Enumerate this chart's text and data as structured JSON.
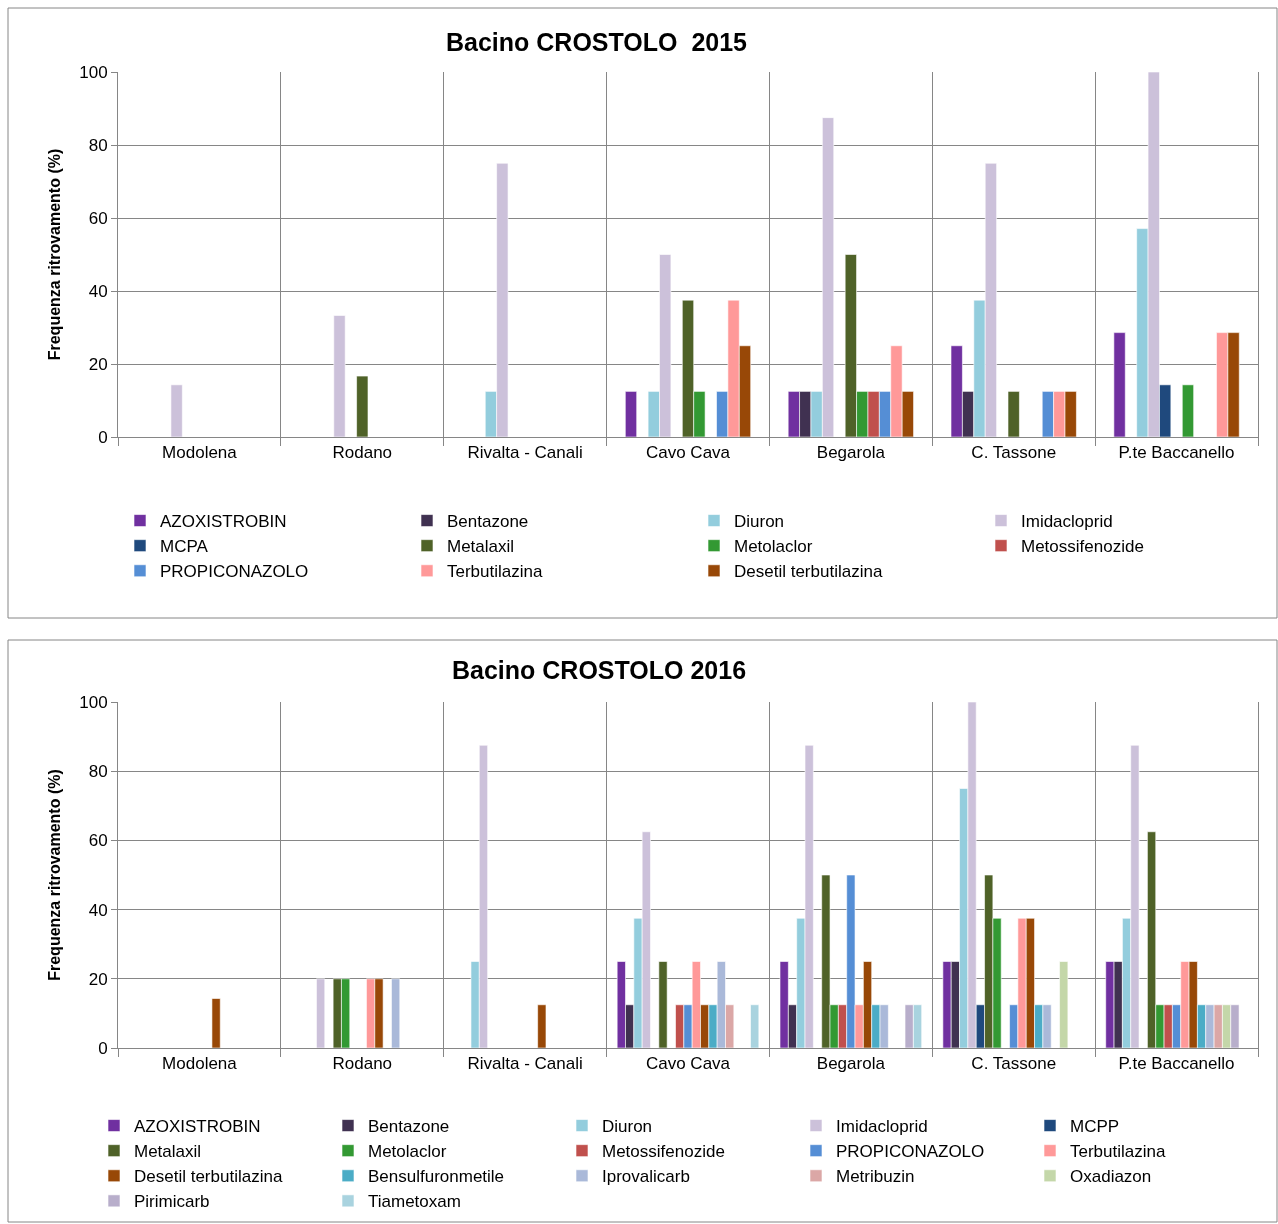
{
  "chart_data": [
    {
      "type": "bar",
      "title": "Bacino CROSTOLO  2015",
      "ylabel": "Frequenza ritrovamento (%)",
      "categories": [
        "Modolena",
        "Rodano",
        "Rivalta - Canali",
        "Cavo Cava",
        "Begarola",
        "C. Tassone",
        "P.te Baccanello"
      ],
      "series": [
        {
          "name": "AZOXISTROBIN",
          "color": "#7030a0",
          "values": [
            null,
            null,
            null,
            12.5,
            12.5,
            25,
            28.6
          ]
        },
        {
          "name": "Bentazone",
          "color": "#403151",
          "values": [
            null,
            null,
            null,
            null,
            12.5,
            12.5,
            null
          ]
        },
        {
          "name": "Diuron",
          "color": "#93cddd",
          "values": [
            null,
            null,
            12.5,
            12.5,
            12.5,
            37.5,
            57.1
          ]
        },
        {
          "name": "Imidacloprid",
          "color": "#ccc1da",
          "values": [
            14.3,
            33.3,
            75,
            50,
            87.5,
            75,
            100
          ]
        },
        {
          "name": "MCPA",
          "color": "#1f497d",
          "values": [
            null,
            null,
            null,
            null,
            null,
            null,
            14.3
          ]
        },
        {
          "name": "Metalaxil",
          "color": "#4f6228",
          "values": [
            null,
            16.7,
            null,
            37.5,
            50,
            12.5,
            null
          ]
        },
        {
          "name": "Metolaclor",
          "color": "#339933",
          "values": [
            null,
            null,
            null,
            12.5,
            12.5,
            null,
            14.3
          ]
        },
        {
          "name": "Metossifenozide",
          "color": "#c0504d",
          "values": [
            null,
            null,
            null,
            null,
            12.5,
            null,
            null
          ]
        },
        {
          "name": "PROPICONAZOLO",
          "color": "#558ed5",
          "values": [
            null,
            null,
            null,
            12.5,
            12.5,
            12.5,
            null
          ]
        },
        {
          "name": "Terbutilazina",
          "color": "#ff9999",
          "values": [
            null,
            null,
            null,
            37.5,
            25,
            12.5,
            28.6
          ]
        },
        {
          "name": "Desetil terbutilazina",
          "color": "#984807",
          "values": [
            null,
            null,
            null,
            25,
            12.5,
            12.5,
            28.6
          ]
        }
      ],
      "ylim": [
        0,
        100
      ],
      "yticks": [
        0,
        20,
        40,
        60,
        80,
        100
      ],
      "grid": true,
      "legend": "bottom"
    },
    {
      "type": "bar",
      "title": "Bacino CROSTOLO 2016",
      "ylabel": "Frequenza ritrovamento (%)",
      "categories": [
        "Modolena",
        "Rodano",
        "Rivalta - Canali",
        "Cavo Cava",
        "Begarola",
        "C. Tassone",
        "P.te Baccanello"
      ],
      "series": [
        {
          "name": "AZOXISTROBIN",
          "color": "#7030a0",
          "values": [
            null,
            null,
            null,
            25,
            25,
            25,
            25
          ]
        },
        {
          "name": "Bentazone",
          "color": "#403151",
          "values": [
            null,
            null,
            null,
            12.5,
            12.5,
            25,
            25
          ]
        },
        {
          "name": "Diuron",
          "color": "#93cddd",
          "values": [
            null,
            null,
            25,
            37.5,
            37.5,
            75,
            37.5
          ]
        },
        {
          "name": "Imidacloprid",
          "color": "#ccc1da",
          "values": [
            null,
            20,
            87.5,
            62.5,
            87.5,
            100,
            87.5
          ]
        },
        {
          "name": "MCPP",
          "color": "#1f497d",
          "values": [
            null,
            null,
            null,
            null,
            null,
            12.5,
            null
          ]
        },
        {
          "name": "Metalaxil",
          "color": "#4f6228",
          "values": [
            null,
            20,
            null,
            25,
            50,
            50,
            62.5
          ]
        },
        {
          "name": "Metolaclor",
          "color": "#339933",
          "values": [
            null,
            20,
            null,
            null,
            12.5,
            37.5,
            12.5
          ]
        },
        {
          "name": "Metossifenozide",
          "color": "#c0504d",
          "values": [
            null,
            null,
            null,
            12.5,
            12.5,
            null,
            12.5
          ]
        },
        {
          "name": "PROPICONAZOLO",
          "color": "#558ed5",
          "values": [
            null,
            null,
            null,
            12.5,
            50,
            12.5,
            12.5
          ]
        },
        {
          "name": "Terbutilazina",
          "color": "#ff9999",
          "values": [
            null,
            20,
            null,
            25,
            12.5,
            37.5,
            25
          ]
        },
        {
          "name": "Desetil terbutilazina",
          "color": "#984807",
          "values": [
            14.3,
            20,
            12.5,
            12.5,
            25,
            37.5,
            25
          ]
        },
        {
          "name": "Bensulfuronmetile",
          "color": "#4bacc6",
          "values": [
            null,
            null,
            null,
            12.5,
            12.5,
            12.5,
            12.5
          ]
        },
        {
          "name": "Iprovalicarb",
          "color": "#aab9d9",
          "values": [
            null,
            20,
            null,
            25,
            12.5,
            12.5,
            12.5
          ]
        },
        {
          "name": "Metribuzin",
          "color": "#dba7a6",
          "values": [
            null,
            null,
            null,
            12.5,
            null,
            null,
            12.5
          ]
        },
        {
          "name": "Oxadiazon",
          "color": "#c4d7a9",
          "values": [
            null,
            null,
            null,
            null,
            null,
            25,
            12.5
          ]
        },
        {
          "name": "Pirimicarb",
          "color": "#b8aecb",
          "values": [
            null,
            null,
            null,
            null,
            12.5,
            null,
            12.5
          ]
        },
        {
          "name": "Tiametoxam",
          "color": "#a9d3df",
          "values": [
            null,
            null,
            null,
            12.5,
            12.5,
            null,
            null
          ]
        }
      ],
      "ylim": [
        0,
        100
      ],
      "yticks": [
        0,
        20,
        40,
        60,
        80,
        100
      ],
      "grid": true,
      "legend": "bottom"
    }
  ]
}
